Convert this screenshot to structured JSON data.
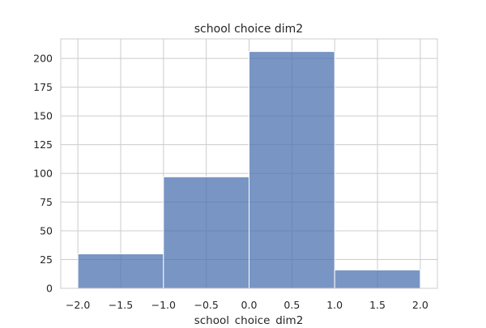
{
  "chart_data": {
    "type": "bar",
    "title": "school choice dim2",
    "xlabel": "school_choice_dim2",
    "ylabel": "",
    "bins": [
      {
        "x0": -2.0,
        "x1": -1.0,
        "value": 30
      },
      {
        "x0": -1.0,
        "x1": 0.0,
        "value": 97
      },
      {
        "x0": 0.0,
        "x1": 1.0,
        "value": 206
      },
      {
        "x0": 1.0,
        "x1": 2.0,
        "value": 16
      }
    ],
    "xlim": [
      -2.2,
      2.2
    ],
    "ylim": [
      0,
      217
    ],
    "xticks": [
      -2.0,
      -1.5,
      -1.0,
      -0.5,
      0.0,
      0.5,
      1.0,
      1.5,
      2.0
    ],
    "xtick_labels": [
      "−2.0",
      "−1.5",
      "−1.0",
      "−0.5",
      "0.0",
      "0.5",
      "1.0",
      "1.5",
      "2.0"
    ],
    "yticks": [
      0,
      25,
      50,
      75,
      100,
      125,
      150,
      175,
      200
    ],
    "ytick_labels": [
      "0",
      "25",
      "50",
      "75",
      "100",
      "125",
      "150",
      "175",
      "200"
    ],
    "grid": true,
    "colors": {
      "bar_fill": "#4c72b0",
      "bar_edge": "#ffffff",
      "grid": "#cccccc",
      "axes_edge": "#cccccc",
      "text": "#262626"
    }
  }
}
